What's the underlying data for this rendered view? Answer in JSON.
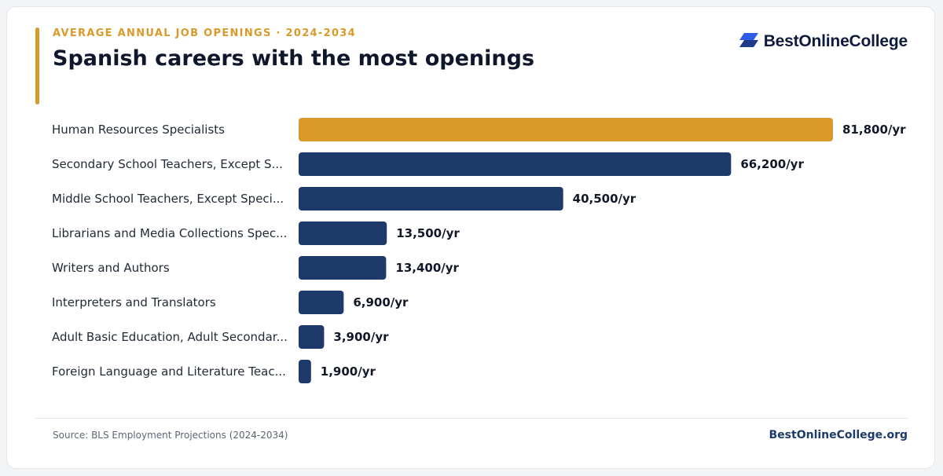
{
  "header": {
    "eyebrow": "AVERAGE ANNUAL JOB OPENINGS · 2024-2034",
    "title": "Spanish careers with the most openings"
  },
  "logo": {
    "text": "BestOnlineCollege",
    "icon": "stacked-chevron-logo-icon"
  },
  "footer": {
    "source": "Source: BLS Employment Projections (2024-2034)",
    "brand": "BestOnlineCollege.org"
  },
  "colors": {
    "accent": "#DA9A2A",
    "bar": "#1E3A6B",
    "logo_blue": "#2F5BEA"
  },
  "chart_data": {
    "type": "bar",
    "orientation": "horizontal",
    "categories": [
      "Human Resources Specialists",
      "Secondary School Teachers, Except S...",
      "Middle School Teachers, Except Speci...",
      "Librarians and Media Collections Spec...",
      "Writers and Authors",
      "Interpreters and Translators",
      "Adult Basic Education, Adult Secondar...",
      "Foreign Language and Literature Teac..."
    ],
    "values": [
      81800,
      66200,
      40500,
      13500,
      13400,
      6900,
      3900,
      1900
    ],
    "value_labels": [
      "81,800/yr",
      "66,200/yr",
      "40,500/yr",
      "13,500/yr",
      "13,400/yr",
      "6,900/yr",
      "3,900/yr",
      "1,900/yr"
    ],
    "highlight_index": 0,
    "xlim": [
      0,
      81800
    ],
    "grid": false,
    "legend": "none"
  }
}
